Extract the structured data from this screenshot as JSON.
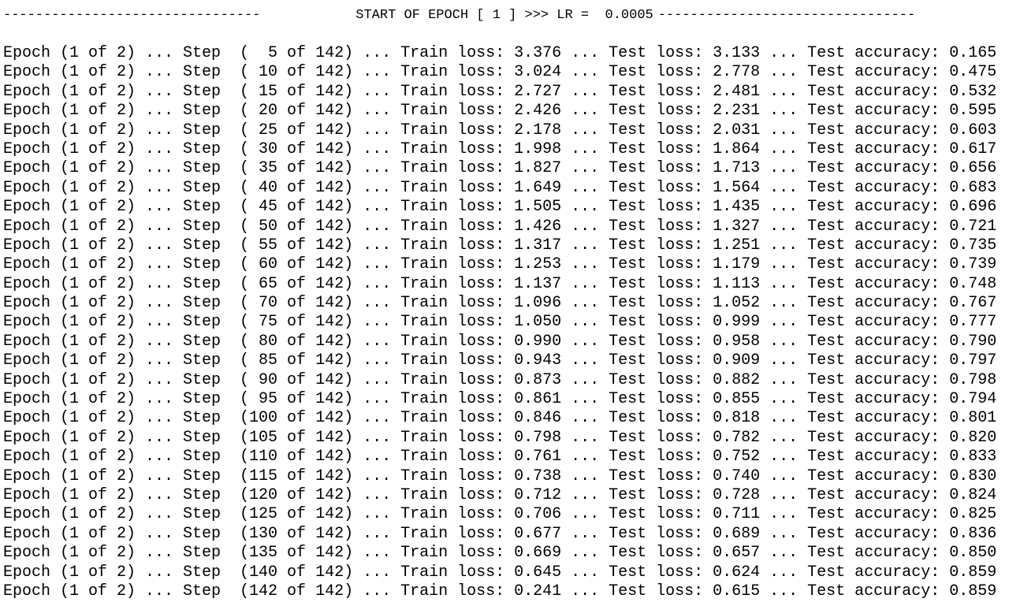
{
  "header": {
    "dashes_left": "--------------------------------",
    "title": "START OF EPOCH [ 1 ] >>> LR =  0.0005",
    "dashes_right": "--------------------------------"
  },
  "log_lines": [
    "Epoch (1 of 2) ... Step  (  5 of 142) ... Train loss: 3.376 ... Test loss: 3.133 ... Test accuracy: 0.165",
    "Epoch (1 of 2) ... Step  ( 10 of 142) ... Train loss: 3.024 ... Test loss: 2.778 ... Test accuracy: 0.475",
    "Epoch (1 of 2) ... Step  ( 15 of 142) ... Train loss: 2.727 ... Test loss: 2.481 ... Test accuracy: 0.532",
    "Epoch (1 of 2) ... Step  ( 20 of 142) ... Train loss: 2.426 ... Test loss: 2.231 ... Test accuracy: 0.595",
    "Epoch (1 of 2) ... Step  ( 25 of 142) ... Train loss: 2.178 ... Test loss: 2.031 ... Test accuracy: 0.603",
    "Epoch (1 of 2) ... Step  ( 30 of 142) ... Train loss: 1.998 ... Test loss: 1.864 ... Test accuracy: 0.617",
    "Epoch (1 of 2) ... Step  ( 35 of 142) ... Train loss: 1.827 ... Test loss: 1.713 ... Test accuracy: 0.656",
    "Epoch (1 of 2) ... Step  ( 40 of 142) ... Train loss: 1.649 ... Test loss: 1.564 ... Test accuracy: 0.683",
    "Epoch (1 of 2) ... Step  ( 45 of 142) ... Train loss: 1.505 ... Test loss: 1.435 ... Test accuracy: 0.696",
    "Epoch (1 of 2) ... Step  ( 50 of 142) ... Train loss: 1.426 ... Test loss: 1.327 ... Test accuracy: 0.721",
    "Epoch (1 of 2) ... Step  ( 55 of 142) ... Train loss: 1.317 ... Test loss: 1.251 ... Test accuracy: 0.735",
    "Epoch (1 of 2) ... Step  ( 60 of 142) ... Train loss: 1.253 ... Test loss: 1.179 ... Test accuracy: 0.739",
    "Epoch (1 of 2) ... Step  ( 65 of 142) ... Train loss: 1.137 ... Test loss: 1.113 ... Test accuracy: 0.748",
    "Epoch (1 of 2) ... Step  ( 70 of 142) ... Train loss: 1.096 ... Test loss: 1.052 ... Test accuracy: 0.767",
    "Epoch (1 of 2) ... Step  ( 75 of 142) ... Train loss: 1.050 ... Test loss: 0.999 ... Test accuracy: 0.777",
    "Epoch (1 of 2) ... Step  ( 80 of 142) ... Train loss: 0.990 ... Test loss: 0.958 ... Test accuracy: 0.790",
    "Epoch (1 of 2) ... Step  ( 85 of 142) ... Train loss: 0.943 ... Test loss: 0.909 ... Test accuracy: 0.797",
    "Epoch (1 of 2) ... Step  ( 90 of 142) ... Train loss: 0.873 ... Test loss: 0.882 ... Test accuracy: 0.798",
    "Epoch (1 of 2) ... Step  ( 95 of 142) ... Train loss: 0.861 ... Test loss: 0.855 ... Test accuracy: 0.794",
    "Epoch (1 of 2) ... Step  (100 of 142) ... Train loss: 0.846 ... Test loss: 0.818 ... Test accuracy: 0.801",
    "Epoch (1 of 2) ... Step  (105 of 142) ... Train loss: 0.798 ... Test loss: 0.782 ... Test accuracy: 0.820",
    "Epoch (1 of 2) ... Step  (110 of 142) ... Train loss: 0.761 ... Test loss: 0.752 ... Test accuracy: 0.833",
    "Epoch (1 of 2) ... Step  (115 of 142) ... Train loss: 0.738 ... Test loss: 0.740 ... Test accuracy: 0.830",
    "Epoch (1 of 2) ... Step  (120 of 142) ... Train loss: 0.712 ... Test loss: 0.728 ... Test accuracy: 0.824",
    "Epoch (1 of 2) ... Step  (125 of 142) ... Train loss: 0.706 ... Test loss: 0.711 ... Test accuracy: 0.825",
    "Epoch (1 of 2) ... Step  (130 of 142) ... Train loss: 0.677 ... Test loss: 0.689 ... Test accuracy: 0.836",
    "Epoch (1 of 2) ... Step  (135 of 142) ... Train loss: 0.669 ... Test loss: 0.657 ... Test accuracy: 0.850",
    "Epoch (1 of 2) ... Step  (140 of 142) ... Train loss: 0.645 ... Test loss: 0.624 ... Test accuracy: 0.859",
    "Epoch (1 of 2) ... Step  (142 of 142) ... Train loss: 0.241 ... Test loss: 0.615 ... Test accuracy: 0.859"
  ],
  "colors": {
    "background": "#ffffff",
    "text": "#000000"
  }
}
